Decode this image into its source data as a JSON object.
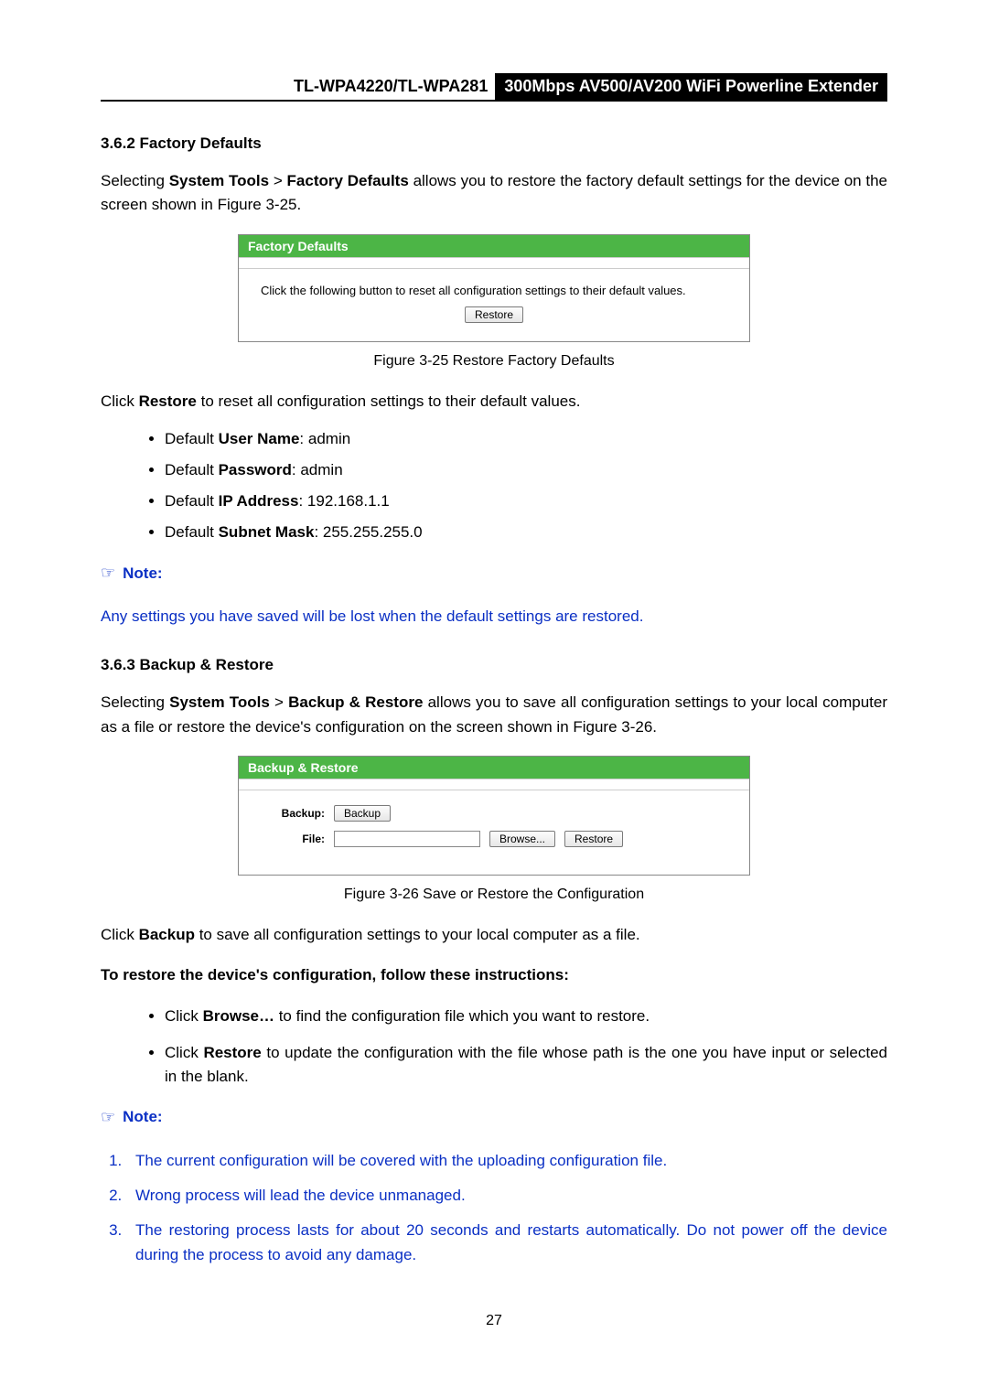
{
  "header": {
    "model": "TL-WPA4220/TL-WPA281",
    "product": "300Mbps AV500/AV200 WiFi Powerline Extender"
  },
  "colors": {
    "panel_header_bg": "#4cb546",
    "panel_header_text": "#ffffff",
    "note_color": "#0a2fc4"
  },
  "section1": {
    "heading": "3.6.2 Factory Defaults",
    "intro_pre": "Selecting ",
    "intro_b1": "System Tools",
    "intro_mid1": " > ",
    "intro_b2": "Factory Defaults",
    "intro_post": " allows you to restore the factory default settings for the device on the screen shown in Figure 3-25.",
    "panel": {
      "title": "Factory Defaults",
      "instruction": "Click the following button to reset all configuration settings to their default values.",
      "restore_btn": "Restore"
    },
    "caption": "Figure 3-25 Restore Factory Defaults",
    "click_pre": "Click ",
    "click_b": "Restore",
    "click_post": " to reset all configuration settings to their default values.",
    "defaults": [
      {
        "pre": "Default ",
        "b": "User Name",
        "post": ": admin"
      },
      {
        "pre": "Default ",
        "b": "Password",
        "post": ": admin"
      },
      {
        "pre": "Default ",
        "b": "IP Address",
        "post": ": 192.168.1.1"
      },
      {
        "pre": "Default ",
        "b": "Subnet Mask",
        "post": ": 255.255.255.0"
      }
    ],
    "note_icon": "☞",
    "note_label": "Note:",
    "note_body": "Any settings you have saved will be lost when the default settings are restored."
  },
  "section2": {
    "heading": "3.6.3 Backup & Restore",
    "intro_pre": "Selecting ",
    "intro_b1": "System Tools",
    "intro_mid1": " > ",
    "intro_b2": "Backup & Restore",
    "intro_post": " allows you to save all configuration settings to your local computer as a file or restore the device's configuration on the screen shown in Figure 3-26.",
    "panel": {
      "title": "Backup & Restore",
      "backup_label": "Backup:",
      "backup_btn": "Backup",
      "file_label": "File:",
      "file_value": "",
      "browse_btn": "Browse...",
      "restore_btn": "Restore"
    },
    "caption": "Figure 3-26 Save or Restore the Configuration",
    "click_pre": "Click ",
    "click_b": "Backup",
    "click_post": " to save all configuration settings to your local computer as a file.",
    "instr_heading": "To restore the device's configuration, follow these instructions:",
    "instructions": [
      {
        "pre": "Click ",
        "b": "Browse…",
        "post": " to find the configuration file which you want to restore."
      },
      {
        "pre": "Click ",
        "b": "Restore",
        "post": " to update the configuration with the file whose path is the one you have input or selected in the blank."
      }
    ],
    "note_icon": "☞",
    "note_label": "Note:",
    "note_list": [
      "The current configuration will be covered with the uploading configuration file.",
      "Wrong process will lead the device unmanaged.",
      "The restoring process lasts for about 20 seconds and restarts automatically. Do not power off the device during the process to avoid any damage."
    ]
  },
  "page_number": "27"
}
